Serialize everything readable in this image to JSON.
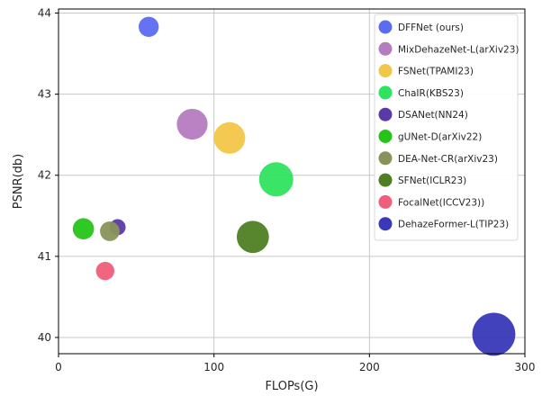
{
  "chart_data": {
    "type": "scatter",
    "xlabel": "FLOPs(G)",
    "ylabel": "PSNR(db)",
    "xlim": [
      0,
      300
    ],
    "ylim": [
      39.8,
      44.05
    ],
    "xticks": [
      0,
      100,
      200,
      300
    ],
    "yticks": [
      40,
      41,
      42,
      43,
      44
    ],
    "grid": true,
    "legend_position": "top-right",
    "series": [
      {
        "name": "DFFNet  (ours)",
        "x": 58,
        "y": 43.83,
        "size": 0.35,
        "color": "#5b6cf0"
      },
      {
        "name": "MixDehazeNet-L(arXiv23)",
        "x": 86,
        "y": 42.63,
        "size": 0.95,
        "color": "#b57cc0"
      },
      {
        "name": "FSNet(TPAMI23)",
        "x": 110,
        "y": 42.46,
        "size": 1.0,
        "color": "#f2c649"
      },
      {
        "name": "ChaIR(KBS23)",
        "x": 140,
        "y": 41.95,
        "size": 1.2,
        "color": "#2ee35e"
      },
      {
        "name": "DSANet(NN24)",
        "x": 38,
        "y": 41.36,
        "size": 0.2,
        "color": "#5a3aa6"
      },
      {
        "name": "gUNet-D(arXiv22)",
        "x": 16,
        "y": 41.34,
        "size": 0.4,
        "color": "#26c418"
      },
      {
        "name": "DEA-Net-CR(arXiv23)",
        "x": 33,
        "y": 41.31,
        "size": 0.33,
        "color": "#88935a"
      },
      {
        "name": "SFNet(ICLR23)",
        "x": 125,
        "y": 41.24,
        "size": 1.05,
        "color": "#4f7f24"
      },
      {
        "name": "FocalNet(ICCV23))",
        "x": 30,
        "y": 40.82,
        "size": 0.28,
        "color": "#ef5e7a"
      },
      {
        "name": "DehazeFormer-L(TIP23)",
        "x": 280,
        "y": 40.04,
        "size": 2.0,
        "color": "#3838b8"
      }
    ]
  }
}
